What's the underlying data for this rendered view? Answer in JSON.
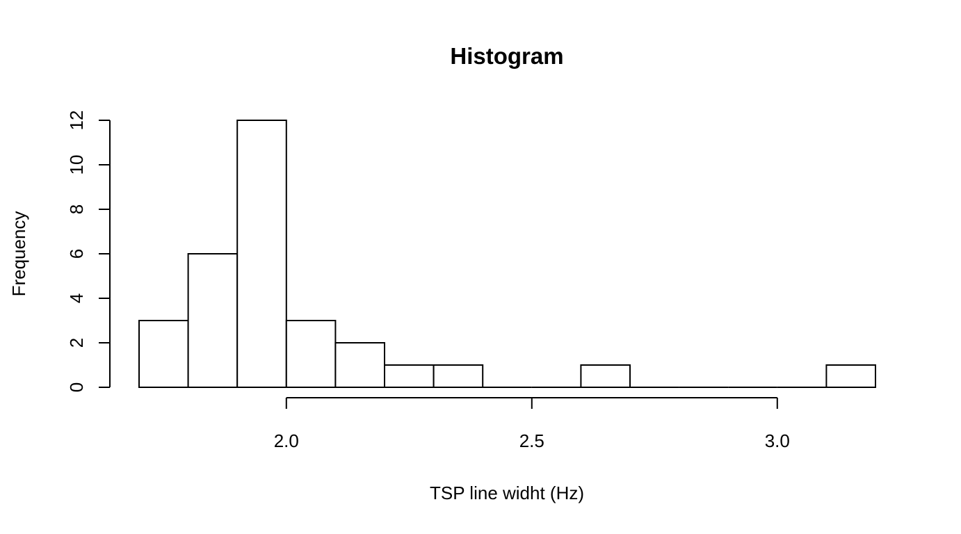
{
  "chart_data": {
    "type": "bar",
    "subtype": "histogram",
    "title": "Histogram",
    "xlabel": "TSP line widht (Hz)",
    "ylabel": "Frequency",
    "bins": [
      {
        "start": 1.7,
        "end": 1.8,
        "count": 3
      },
      {
        "start": 1.8,
        "end": 1.9,
        "count": 6
      },
      {
        "start": 1.9,
        "end": 2.0,
        "count": 12
      },
      {
        "start": 2.0,
        "end": 2.1,
        "count": 3
      },
      {
        "start": 2.1,
        "end": 2.2,
        "count": 2
      },
      {
        "start": 2.2,
        "end": 2.3,
        "count": 1
      },
      {
        "start": 2.3,
        "end": 2.4,
        "count": 1
      },
      {
        "start": 2.4,
        "end": 2.5,
        "count": 0
      },
      {
        "start": 2.5,
        "end": 2.6,
        "count": 0
      },
      {
        "start": 2.6,
        "end": 2.7,
        "count": 1
      },
      {
        "start": 2.7,
        "end": 2.8,
        "count": 0
      },
      {
        "start": 2.8,
        "end": 2.9,
        "count": 0
      },
      {
        "start": 2.9,
        "end": 3.0,
        "count": 0
      },
      {
        "start": 3.0,
        "end": 3.1,
        "count": 0
      },
      {
        "start": 3.1,
        "end": 3.2,
        "count": 1
      }
    ],
    "x_ticks": [
      {
        "value": 2.0,
        "label": "2.0"
      },
      {
        "value": 2.5,
        "label": "2.5"
      },
      {
        "value": 3.0,
        "label": "3.0"
      }
    ],
    "y_ticks": [
      {
        "value": 0,
        "label": "0"
      },
      {
        "value": 2,
        "label": "2"
      },
      {
        "value": 4,
        "label": "4"
      },
      {
        "value": 6,
        "label": "6"
      },
      {
        "value": 8,
        "label": "8"
      },
      {
        "value": 10,
        "label": "10"
      },
      {
        "value": 12,
        "label": "12"
      }
    ],
    "xlim": [
      1.7,
      3.2
    ],
    "ylim": [
      0,
      12
    ],
    "grid": false,
    "legend": "none"
  }
}
